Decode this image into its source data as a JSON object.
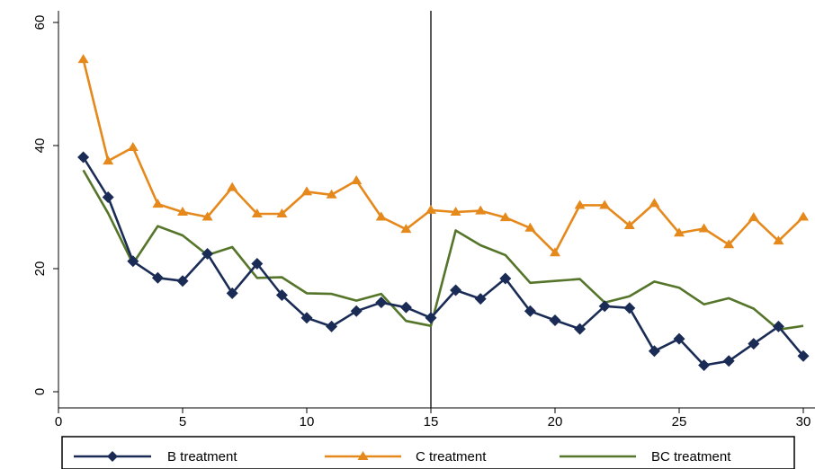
{
  "chart_data": {
    "type": "line",
    "title": "",
    "xlabel": "",
    "ylabel": "",
    "xlim": [
      0,
      30
    ],
    "ylim": [
      0,
      60
    ],
    "x_ticks": [
      0,
      5,
      10,
      15,
      20,
      25,
      30
    ],
    "y_ticks": [
      0,
      20,
      40,
      60
    ],
    "x_tick_labels": [
      "0",
      "5",
      "10",
      "15",
      "20",
      "25",
      "30"
    ],
    "y_tick_labels": [
      "0",
      "20",
      "40",
      "60"
    ],
    "grid": false,
    "vertical_line_x": 15,
    "legend_position": "bottom",
    "x": [
      1,
      2,
      3,
      4,
      5,
      6,
      7,
      8,
      9,
      10,
      11,
      12,
      13,
      14,
      15,
      16,
      17,
      18,
      19,
      20,
      21,
      22,
      23,
      24,
      25,
      26,
      27,
      28,
      29,
      30
    ],
    "series": [
      {
        "name": "B treatment",
        "color": "#1a2c56",
        "marker": "diamond",
        "values": [
          38.1,
          31.6,
          21.2,
          18.5,
          18.0,
          22.4,
          16.0,
          20.8,
          15.7,
          12.0,
          10.6,
          13.1,
          14.5,
          13.7,
          12.0,
          16.5,
          15.1,
          18.4,
          13.1,
          11.6,
          10.2,
          13.9,
          13.6,
          6.6,
          8.6,
          4.3,
          5.0,
          7.8,
          10.6,
          5.8
        ]
      },
      {
        "name": "C treatment",
        "color": "#e6891c",
        "marker": "triangle",
        "values": [
          54.0,
          37.5,
          39.7,
          30.5,
          29.2,
          28.4,
          33.2,
          28.9,
          28.9,
          32.5,
          32.0,
          34.3,
          28.4,
          26.4,
          29.5,
          29.2,
          29.4,
          28.3,
          26.6,
          22.6,
          30.3,
          30.3,
          27.0,
          30.6,
          25.8,
          26.5,
          23.9,
          28.3,
          24.5,
          28.4
        ]
      },
      {
        "name": "BC treatment",
        "color": "#55752a",
        "marker": "none",
        "values": [
          36.0,
          29.0,
          20.8,
          26.9,
          25.4,
          22.2,
          23.5,
          18.5,
          18.6,
          16.0,
          15.9,
          14.8,
          15.9,
          11.5,
          10.7,
          26.2,
          23.8,
          22.2,
          17.7,
          18.0,
          18.3,
          14.5,
          15.5,
          17.9,
          16.9,
          14.2,
          15.2,
          13.5,
          10.1,
          10.7
        ]
      }
    ]
  }
}
